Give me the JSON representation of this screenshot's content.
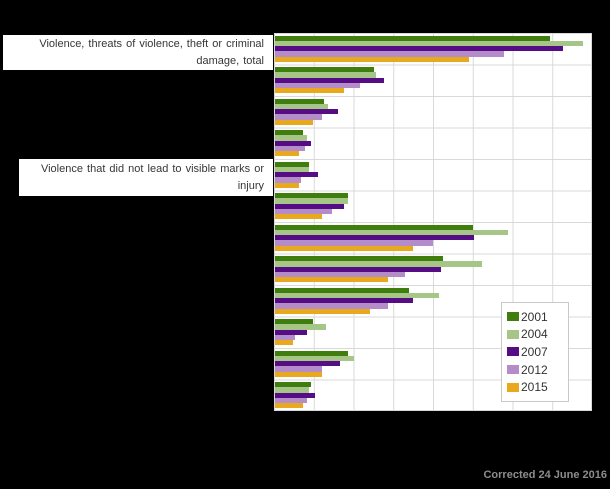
{
  "footer": {
    "note": "Corrected 24 June 2016"
  },
  "chart_data": {
    "type": "bar",
    "orientation": "horizontal",
    "title": "",
    "xlabel": "",
    "ylabel": "",
    "xlim": [
      0,
      16
    ],
    "grid_x_interval": 2,
    "grid": true,
    "axis_tick_labels_visible": false,
    "legend_position": "inside-lower-right",
    "categories": [
      "Violence, threats of violence, theft or criminal damage, total",
      "",
      "",
      "",
      "Violence that did not lead to visible marks or injury",
      "",
      "",
      "",
      "",
      "",
      "",
      ""
    ],
    "series": [
      {
        "name": "2001",
        "color": "#3f7e0e",
        "values": [
          13.9,
          5.0,
          2.5,
          1.4,
          1.7,
          3.7,
          10.0,
          8.5,
          6.8,
          1.9,
          3.7,
          1.8
        ]
      },
      {
        "name": "2004",
        "color": "#a5c687",
        "values": [
          15.6,
          5.1,
          2.7,
          1.6,
          1.7,
          3.7,
          11.8,
          10.5,
          8.3,
          2.6,
          4.0,
          1.7
        ]
      },
      {
        "name": "2007",
        "color": "#560c85",
        "values": [
          14.6,
          5.5,
          3.2,
          1.8,
          2.2,
          3.5,
          10.1,
          8.4,
          7.0,
          1.6,
          3.3,
          2.0
        ]
      },
      {
        "name": "2012",
        "color": "#b48cc8",
        "values": [
          11.6,
          4.3,
          2.4,
          1.5,
          1.3,
          2.9,
          8.0,
          6.6,
          5.7,
          1.0,
          2.4,
          1.6
        ]
      },
      {
        "name": "2015",
        "color": "#e9a91f",
        "values": [
          9.8,
          3.5,
          1.9,
          1.2,
          1.2,
          2.4,
          7.0,
          5.7,
          4.8,
          0.9,
          2.4,
          1.4
        ]
      }
    ],
    "colors": {
      "plot_background": "#ffffff",
      "gridline": "#d9d9d9",
      "page_background": "#000000",
      "footer_text": "#8d8d8d"
    }
  }
}
